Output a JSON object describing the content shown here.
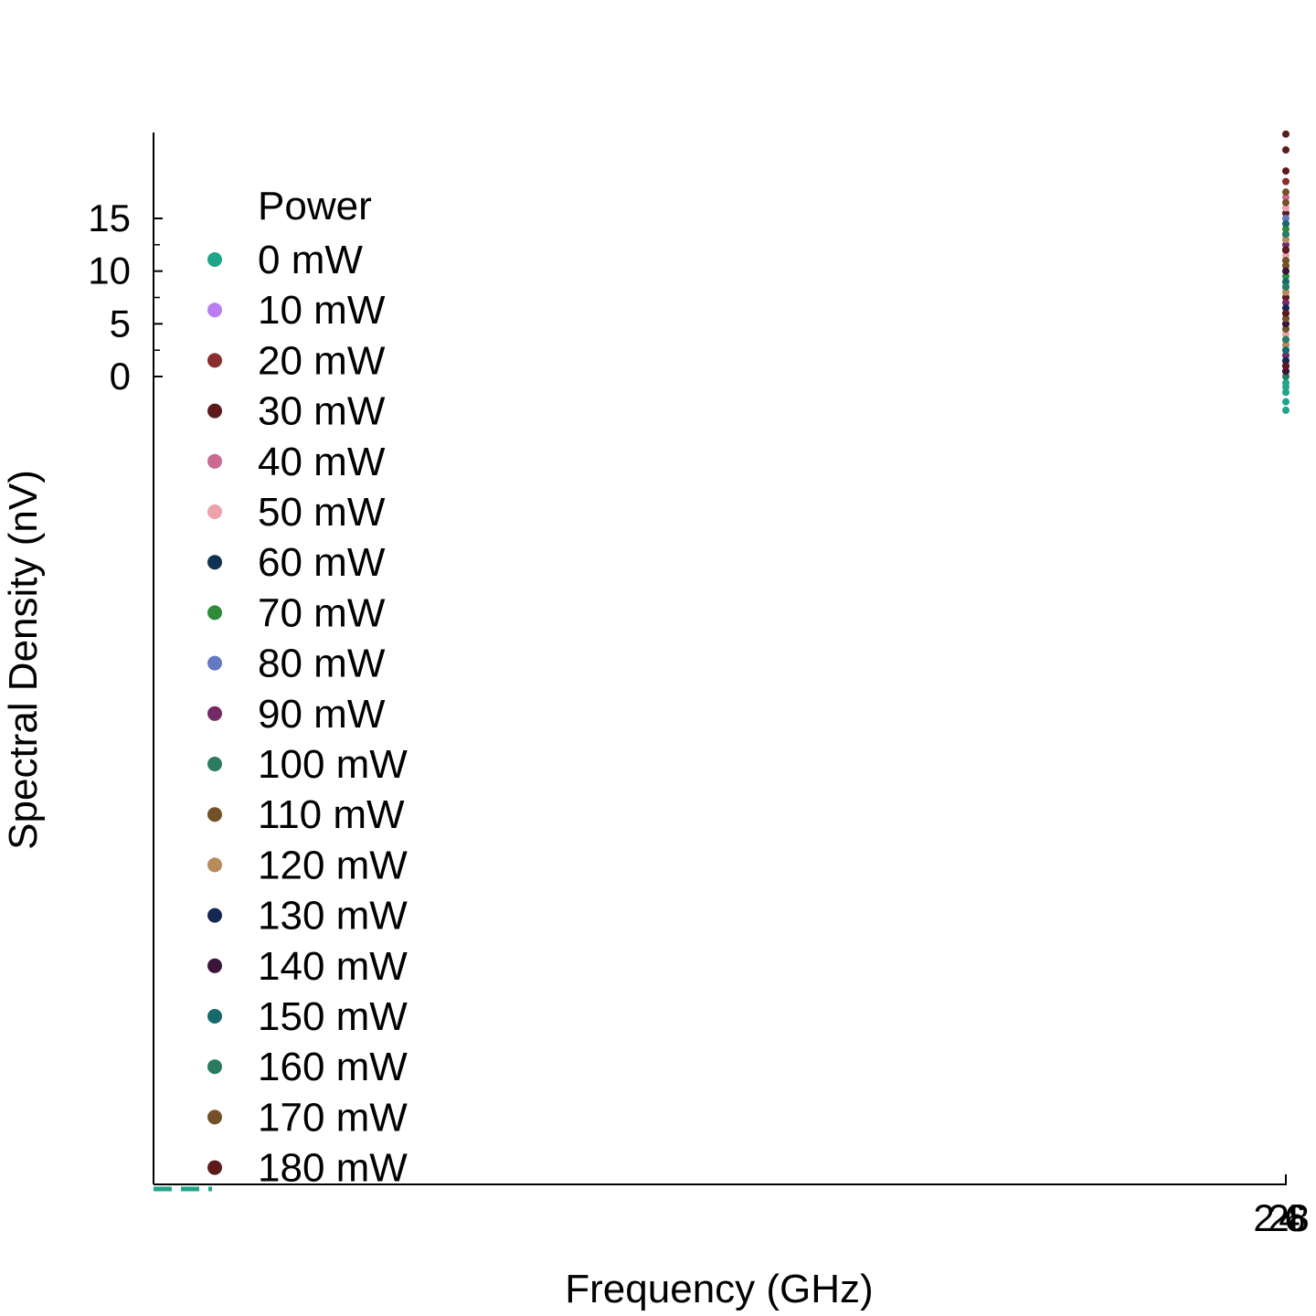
{
  "chart_data": {
    "type": "scatter",
    "title": "",
    "xlabel": "Frequency (GHz)",
    "ylabel": "Spectral Density (nV)",
    "ylim": [
      -8.5,
      23
    ],
    "y_ticks": [
      0,
      5,
      10,
      15
    ],
    "x_tick_labels": [
      "2",
      "2",
      "4",
      "6",
      "8"
    ],
    "x_cluster_value": 8,
    "grid": false,
    "legend": {
      "title": "Power",
      "placement": "left"
    },
    "series": [
      {
        "name": "0 mW",
        "color": "#1fa58a",
        "x": [
          8,
          8,
          8,
          8,
          8,
          8,
          8,
          8,
          8
        ],
        "y": [
          -1.5,
          -1.0,
          -0.6,
          -3.2,
          -2.4,
          0.5,
          2.0,
          4.5,
          8.0
        ]
      },
      {
        "name": "10 mW",
        "color": "#b87ef0",
        "x": [
          8,
          8,
          8
        ],
        "y": [
          3.0,
          9.0,
          14.5
        ]
      },
      {
        "name": "20 mW",
        "color": "#8b2d2d",
        "x": [
          8,
          8,
          8,
          8
        ],
        "y": [
          0.5,
          6.0,
          12.0,
          18.5
        ]
      },
      {
        "name": "30 mW",
        "color": "#5c1a1a",
        "x": [
          8,
          8,
          8,
          8
        ],
        "y": [
          1.5,
          7.5,
          15.5,
          21.5
        ]
      },
      {
        "name": "40 mW",
        "color": "#c96a92",
        "x": [
          8,
          8,
          8
        ],
        "y": [
          2.5,
          10.5,
          17.0
        ]
      },
      {
        "name": "50 mW",
        "color": "#eea0ac",
        "x": [
          8,
          8,
          8
        ],
        "y": [
          4.0,
          11.5,
          16.0
        ]
      },
      {
        "name": "60 mW",
        "color": "#0e3250",
        "x": [
          8,
          8,
          8
        ],
        "y": [
          1.0,
          8.5,
          13.5
        ]
      },
      {
        "name": "70 mW",
        "color": "#2e8b3c",
        "x": [
          8,
          8,
          8
        ],
        "y": [
          3.5,
          9.5,
          14.0
        ]
      },
      {
        "name": "80 mW",
        "color": "#6478c4",
        "x": [
          8,
          8,
          8
        ],
        "y": [
          5.0,
          10.0,
          15.0
        ]
      },
      {
        "name": "90 mW",
        "color": "#752a68",
        "x": [
          8,
          8,
          8
        ],
        "y": [
          2.0,
          7.0,
          12.5
        ]
      },
      {
        "name": "100 mW",
        "color": "#2b7a62",
        "x": [
          8,
          8,
          8
        ],
        "y": [
          0.0,
          5.5,
          11.0
        ]
      },
      {
        "name": "110 mW",
        "color": "#735128",
        "x": [
          8,
          8,
          8
        ],
        "y": [
          4.5,
          10.5,
          16.5
        ]
      },
      {
        "name": "120 mW",
        "color": "#b88a5c",
        "x": [
          8,
          8,
          8
        ],
        "y": [
          3.0,
          8.0,
          13.0
        ]
      },
      {
        "name": "130 mW",
        "color": "#152755",
        "x": [
          8,
          8,
          8
        ],
        "y": [
          1.5,
          6.5,
          12.0
        ]
      },
      {
        "name": "140 mW",
        "color": "#3a1538",
        "x": [
          8,
          8,
          8
        ],
        "y": [
          0.5,
          5.0,
          10.0
        ]
      },
      {
        "name": "150 mW",
        "color": "#156b6b",
        "x": [
          8,
          8,
          8
        ],
        "y": [
          2.5,
          9.0,
          14.5
        ]
      },
      {
        "name": "160 mW",
        "color": "#2b7a62",
        "x": [
          8,
          8,
          8
        ],
        "y": [
          3.5,
          8.5,
          13.5
        ]
      },
      {
        "name": "170 mW",
        "color": "#735128",
        "x": [
          8,
          8,
          8
        ],
        "y": [
          5.5,
          11.0,
          17.5
        ]
      },
      {
        "name": "180 mW",
        "color": "#5c1a1a",
        "x": [
          8,
          8,
          8,
          8,
          8
        ],
        "y": [
          1.0,
          6.0,
          12.0,
          19.5,
          23.0
        ]
      }
    ]
  }
}
